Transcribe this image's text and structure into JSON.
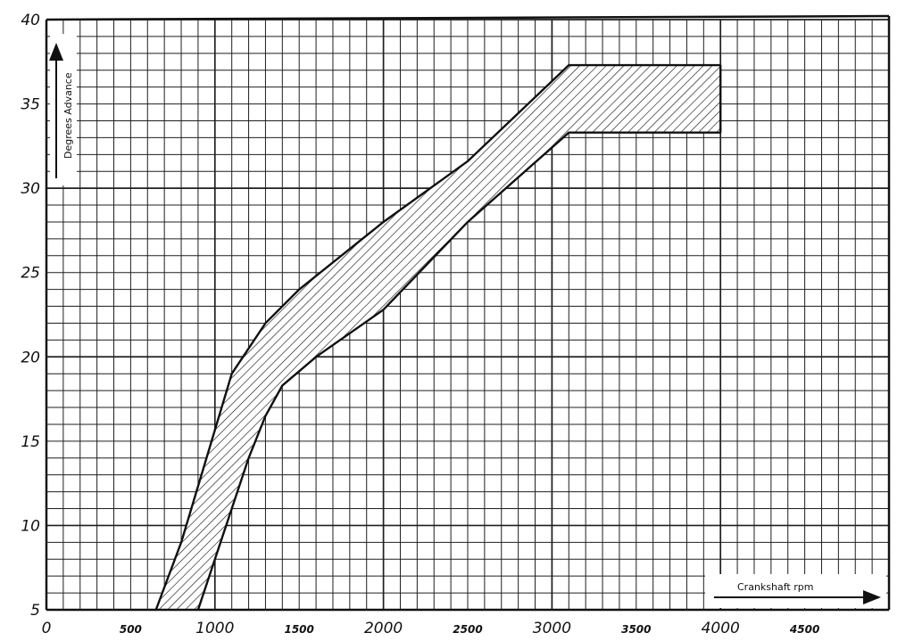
{
  "chart_data": {
    "type": "area",
    "xlim": [
      0,
      5000
    ],
    "ylim": [
      5,
      40
    ],
    "grid": true,
    "y_ticks": [
      "5",
      "10",
      "15",
      "20",
      "25",
      "30",
      "35",
      "40"
    ],
    "x_ticks": [
      {
        "value": 0,
        "label": "0",
        "size": "large"
      },
      {
        "value": 500,
        "label": "500",
        "size": "small"
      },
      {
        "value": 1000,
        "label": "1000",
        "size": "large"
      },
      {
        "value": 1500,
        "label": "1500",
        "size": "small"
      },
      {
        "value": 2000,
        "label": "2000",
        "size": "large"
      },
      {
        "value": 2500,
        "label": "2500",
        "size": "small"
      },
      {
        "value": 3000,
        "label": "3000",
        "size": "large"
      },
      {
        "value": 3500,
        "label": "3500",
        "size": "small"
      },
      {
        "value": 4000,
        "label": "4000",
        "size": "large"
      },
      {
        "value": 4500,
        "label": "4500",
        "size": "small"
      }
    ],
    "ylabel": "Degrees Advance",
    "xlabel": "Crankshaft rpm",
    "band": {
      "upper": [
        [
          650,
          5
        ],
        [
          800,
          9
        ],
        [
          950,
          14
        ],
        [
          1100,
          19
        ],
        [
          1300,
          22
        ],
        [
          1500,
          24
        ],
        [
          2000,
          28
        ],
        [
          2500,
          31.6
        ],
        [
          3100,
          37.3
        ],
        [
          4000,
          37.3
        ]
      ],
      "lower": [
        [
          900,
          5
        ],
        [
          1050,
          9.5
        ],
        [
          1200,
          14
        ],
        [
          1300,
          16.5
        ],
        [
          1400,
          18.3
        ],
        [
          1600,
          20
        ],
        [
          2000,
          22.8
        ],
        [
          2500,
          28
        ],
        [
          3100,
          33.3
        ],
        [
          4000,
          33.3
        ]
      ],
      "close_at_x": 4000,
      "fill": "hatched"
    },
    "colors": {
      "ink": "#1a1a1a",
      "grid": "#2a2a2a",
      "paper": "#ffffff"
    }
  }
}
